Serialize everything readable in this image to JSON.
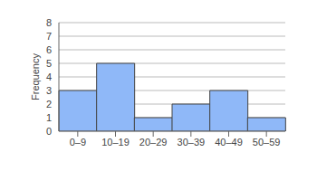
{
  "chart_data": {
    "type": "bar",
    "y_label": "Frequency",
    "categories": [
      "0–9",
      "10–19",
      "20–29",
      "30–39",
      "40–49",
      "50–59"
    ],
    "values": [
      3,
      5,
      1,
      2,
      3,
      1
    ],
    "color": "#8fb8f8",
    "ylim": [
      0,
      8
    ],
    "yticks": [
      0,
      1,
      2,
      3,
      4,
      5,
      6,
      7,
      8
    ],
    "grid": true
  }
}
